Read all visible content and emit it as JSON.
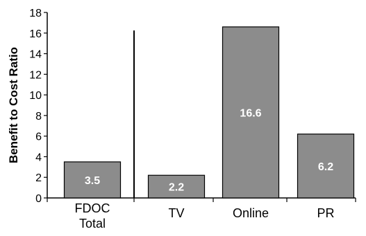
{
  "chart_data": {
    "type": "bar",
    "title": "",
    "xlabel": "",
    "ylabel": "Benefit to Cost Ratio",
    "ylim": [
      0,
      18
    ],
    "yticks": [
      0,
      2,
      4,
      6,
      8,
      10,
      12,
      14,
      16,
      18
    ],
    "categories": [
      {
        "lines": [
          "FDOC",
          "Total"
        ]
      },
      {
        "lines": [
          "TV"
        ]
      },
      {
        "lines": [
          "Online"
        ]
      },
      {
        "lines": [
          "PR"
        ]
      }
    ],
    "values": [
      3.5,
      2.2,
      16.6,
      6.2
    ],
    "data_labels": [
      "3.5",
      "2.2",
      "16.6",
      "6.2"
    ],
    "separator_after_category": 0,
    "grid": false,
    "legend": "none",
    "colors": {
      "bar_fill": "#8c8c8c",
      "bar_stroke": "#000000",
      "label_text": "#ffffff",
      "axis": "#000000"
    }
  }
}
